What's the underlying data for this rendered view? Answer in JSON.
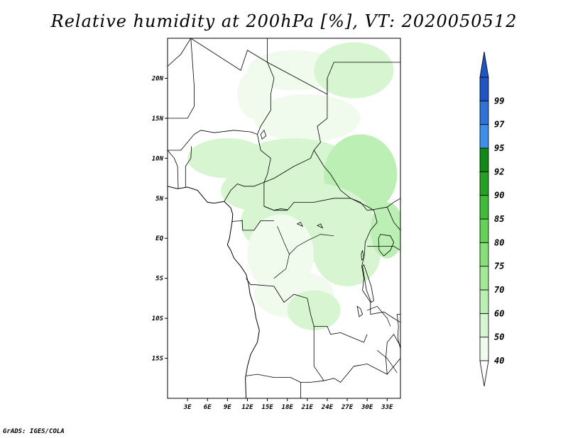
{
  "map": {
    "title": "Relative humidity at 200hPa [%], VT: 2020050512",
    "credit": "GrADS: IGES/COLA",
    "lon_range": [
      0,
      35
    ],
    "lat_range": [
      -20,
      25
    ],
    "lat_ticks": [
      {
        "value": 20,
        "label": "20N"
      },
      {
        "value": 15,
        "label": "15N"
      },
      {
        "value": 10,
        "label": "10N"
      },
      {
        "value": 5,
        "label": "5N"
      },
      {
        "value": 0,
        "label": "EQ"
      },
      {
        "value": -5,
        "label": "5S"
      },
      {
        "value": -10,
        "label": "10S"
      },
      {
        "value": -15,
        "label": "15S"
      }
    ],
    "lon_ticks": [
      {
        "value": 3,
        "label": "3E"
      },
      {
        "value": 6,
        "label": "6E"
      },
      {
        "value": 9,
        "label": "9E"
      },
      {
        "value": 12,
        "label": "12E"
      },
      {
        "value": 15,
        "label": "15E"
      },
      {
        "value": 18,
        "label": "18E"
      },
      {
        "value": 21,
        "label": "21E"
      },
      {
        "value": 24,
        "label": "24E"
      },
      {
        "value": 27,
        "label": "27E"
      },
      {
        "value": 30,
        "label": "30E"
      },
      {
        "value": 33,
        "label": "33E"
      }
    ],
    "colorbar": {
      "bins": [
        {
          "lo": 40,
          "hi": 50,
          "color": "#f0fbee"
        },
        {
          "lo": 50,
          "hi": 60,
          "color": "#d6f5d0"
        },
        {
          "lo": 60,
          "hi": 70,
          "color": "#bcefb3"
        },
        {
          "lo": 70,
          "hi": 75,
          "color": "#a2e996"
        },
        {
          "lo": 75,
          "hi": 80,
          "color": "#86e078"
        },
        {
          "lo": 80,
          "hi": 85,
          "color": "#62d356"
        },
        {
          "lo": 85,
          "hi": 90,
          "color": "#3fbd38"
        },
        {
          "lo": 90,
          "hi": 92,
          "color": "#25a226"
        },
        {
          "lo": 92,
          "hi": 95,
          "color": "#118a15"
        },
        {
          "lo": 95,
          "hi": 97,
          "color": "#3d8fe8"
        },
        {
          "lo": 97,
          "hi": 99,
          "color": "#2f71d6"
        },
        {
          "lo": 99,
          "hi": 100,
          "color": "#1f56c4"
        }
      ],
      "labels": [
        "40",
        "50",
        "60",
        "70",
        "75",
        "80",
        "85",
        "90",
        "92",
        "95",
        "97",
        "99"
      ],
      "lower_extension_color": "#ffffff",
      "upper_extension_color": "#1f56c4"
    },
    "humidity_fields": [
      {
        "lon": 13,
        "lat": 18,
        "rx": 2.5,
        "ry": 3,
        "level": "40-50"
      },
      {
        "lon": 19,
        "lat": 21,
        "rx": 7,
        "ry": 2.5,
        "level": "40-50"
      },
      {
        "lon": 28,
        "lat": 21,
        "rx": 6,
        "ry": 3.5,
        "level": "50-60"
      },
      {
        "lon": 21,
        "lat": 15,
        "rx": 8,
        "ry": 3,
        "level": "40-50"
      },
      {
        "lon": 9,
        "lat": 10,
        "rx": 6,
        "ry": 2.5,
        "level": "50-60"
      },
      {
        "lon": 19,
        "lat": 9,
        "rx": 9,
        "ry": 3.5,
        "level": "50-60"
      },
      {
        "lon": 29,
        "lat": 8,
        "rx": 5.5,
        "ry": 5,
        "level": "60-70"
      },
      {
        "lon": 13,
        "lat": 6,
        "rx": 5,
        "ry": 2.5,
        "level": "50-60"
      },
      {
        "lon": 21,
        "lat": 2,
        "rx": 10,
        "ry": 5,
        "level": "50-60"
      },
      {
        "lon": 17,
        "lat": -2,
        "rx": 5,
        "ry": 5,
        "level": "40-50"
      },
      {
        "lon": 27,
        "lat": -2,
        "rx": 5,
        "ry": 4,
        "level": "50-60"
      },
      {
        "lon": 33,
        "lat": 1,
        "rx": 2.5,
        "ry": 3.5,
        "level": "60-70"
      },
      {
        "lon": 19,
        "lat": -7,
        "rx": 6,
        "ry": 3,
        "level": "40-50"
      },
      {
        "lon": 22,
        "lat": -9,
        "rx": 4,
        "ry": 2.5,
        "level": "50-60"
      }
    ],
    "coastline": [
      [
        0,
        6.5
      ],
      [
        1.5,
        6.2
      ],
      [
        3,
        6.4
      ],
      [
        4.5,
        6
      ],
      [
        6,
        4.5
      ],
      [
        7,
        4.4
      ],
      [
        8.5,
        4.6
      ],
      [
        9.5,
        3.8
      ],
      [
        9.8,
        3
      ],
      [
        9.7,
        2
      ],
      [
        9.5,
        1
      ],
      [
        9.3,
        0
      ],
      [
        9,
        -0.8
      ],
      [
        9.5,
        -1.5
      ],
      [
        10,
        -2.5
      ],
      [
        11,
        -3.5
      ],
      [
        11.8,
        -4.5
      ],
      [
        12.2,
        -5.8
      ],
      [
        12.4,
        -7
      ],
      [
        13,
        -8.5
      ],
      [
        13.3,
        -10
      ],
      [
        13.8,
        -11.5
      ],
      [
        13.5,
        -13
      ],
      [
        12.5,
        -14.5
      ],
      [
        12,
        -16
      ],
      [
        11.7,
        -17.5
      ],
      [
        11.8,
        -20
      ]
    ],
    "borders": [
      [
        [
          3.5,
          25
        ],
        [
          11,
          21
        ],
        [
          12,
          23.5
        ],
        [
          15,
          22
        ],
        [
          15,
          25
        ]
      ],
      [
        [
          15,
          22
        ],
        [
          16,
          20
        ],
        [
          15.5,
          18
        ],
        [
          15.5,
          16
        ],
        [
          14,
          14
        ],
        [
          13.5,
          13
        ]
      ],
      [
        [
          15,
          22
        ],
        [
          24,
          18
        ],
        [
          24,
          20
        ],
        [
          25,
          22
        ],
        [
          35,
          22
        ]
      ],
      [
        [
          24,
          20
        ],
        [
          24,
          15
        ],
        [
          22.5,
          14
        ],
        [
          23,
          12
        ],
        [
          22,
          11
        ],
        [
          21.5,
          10
        ],
        [
          19,
          9
        ],
        [
          16,
          7.5
        ],
        [
          14.5,
          7
        ],
        [
          14.5,
          4
        ],
        [
          16,
          3.5
        ],
        [
          18,
          3.5
        ],
        [
          19,
          4.5
        ],
        [
          22,
          4.5
        ],
        [
          25,
          5
        ],
        [
          27.5,
          5
        ]
      ],
      [
        [
          13.5,
          13
        ],
        [
          14,
          11
        ],
        [
          15.5,
          10
        ],
        [
          15,
          8
        ],
        [
          14.5,
          7
        ],
        [
          13,
          6.5
        ],
        [
          11.5,
          6.5
        ],
        [
          10.5,
          6.8
        ],
        [
          9.5,
          6
        ],
        [
          8.5,
          4.6
        ]
      ],
      [
        [
          0,
          11
        ],
        [
          2,
          11
        ],
        [
          4,
          13
        ],
        [
          5,
          13.5
        ],
        [
          7,
          13.2
        ],
        [
          10,
          13.5
        ],
        [
          12.5,
          13.3
        ],
        [
          13.5,
          13
        ]
      ],
      [
        [
          3.5,
          25
        ],
        [
          2,
          23
        ],
        [
          0,
          21.5
        ]
      ],
      [
        [
          0,
          15
        ],
        [
          3,
          15
        ],
        [
          4,
          16.5
        ],
        [
          4,
          19
        ],
        [
          3.5,
          25
        ]
      ],
      [
        [
          0,
          11
        ],
        [
          1,
          10
        ],
        [
          1.5,
          9
        ],
        [
          1.6,
          6.2
        ]
      ],
      [
        [
          2.7,
          6.4
        ],
        [
          2.7,
          9
        ],
        [
          3.5,
          10
        ],
        [
          3.6,
          11.5
        ]
      ],
      [
        [
          22,
          11
        ],
        [
          23.5,
          9
        ],
        [
          24.5,
          8
        ],
        [
          26,
          6
        ],
        [
          27.5,
          5
        ],
        [
          30,
          4
        ],
        [
          31,
          3.5
        ],
        [
          31.5,
          2
        ]
      ],
      [
        [
          27.5,
          5
        ],
        [
          29,
          4.5
        ],
        [
          30,
          3.5
        ],
        [
          31,
          3.6
        ],
        [
          33,
          3.9
        ],
        [
          34,
          4.5
        ],
        [
          35,
          5
        ]
      ],
      [
        [
          31.5,
          2
        ],
        [
          30.5,
          1
        ],
        [
          29.7,
          -0.5
        ],
        [
          29.6,
          -2
        ],
        [
          29.2,
          -3.5
        ],
        [
          29.5,
          -5
        ],
        [
          29.3,
          -6.5
        ],
        [
          30.5,
          -8
        ],
        [
          30.5,
          -9.5
        ]
      ],
      [
        [
          11.2,
          2.3
        ],
        [
          11.3,
          1
        ],
        [
          13,
          1
        ],
        [
          14,
          2.2
        ],
        [
          16,
          2.2
        ]
      ],
      [
        [
          9.6,
          2.1
        ],
        [
          11.3,
          2.2
        ]
      ],
      [
        [
          14.5,
          4
        ],
        [
          16,
          3.5
        ],
        [
          17,
          3.7
        ],
        [
          18,
          3.6
        ]
      ],
      [
        [
          11.8,
          -5
        ],
        [
          12.5,
          -5.8
        ],
        [
          13.2,
          -5.8
        ],
        [
          16,
          -6
        ],
        [
          17.5,
          -8
        ],
        [
          19,
          -7
        ],
        [
          21,
          -7.5
        ],
        [
          21.5,
          -9.5
        ],
        [
          22,
          -11
        ],
        [
          24,
          -11
        ],
        [
          24.5,
          -12
        ],
        [
          26,
          -11.8
        ],
        [
          28,
          -12.5
        ],
        [
          29.5,
          -13
        ],
        [
          30,
          -12
        ]
      ],
      [
        [
          22,
          -11
        ],
        [
          22,
          -13
        ],
        [
          22,
          -16
        ],
        [
          23.5,
          -17.8
        ],
        [
          25,
          -17.5
        ],
        [
          26,
          -18
        ],
        [
          28,
          -16
        ],
        [
          30,
          -15.7
        ],
        [
          33,
          -17
        ],
        [
          35,
          -15
        ]
      ],
      [
        [
          20,
          -18
        ],
        [
          21.5,
          -18
        ],
        [
          23.5,
          -17.8
        ]
      ],
      [
        [
          11.8,
          -17.2
        ],
        [
          13.5,
          -17
        ],
        [
          16,
          -17.4
        ],
        [
          18.5,
          -17.4
        ],
        [
          20,
          -18
        ],
        [
          20,
          -20
        ]
      ],
      [
        [
          33,
          -17
        ],
        [
          32.8,
          -15
        ],
        [
          33,
          -13
        ],
        [
          34,
          -12
        ],
        [
          35,
          -13.5
        ]
      ],
      [
        [
          30.5,
          -9.5
        ],
        [
          32.5,
          -9.2
        ],
        [
          34,
          -10
        ],
        [
          35,
          -10.5
        ]
      ],
      [
        [
          30,
          -1
        ],
        [
          31,
          -1
        ],
        [
          32.5,
          -1
        ],
        [
          34,
          -1
        ],
        [
          35,
          -1.5
        ]
      ],
      [
        [
          33,
          3.9
        ],
        [
          34,
          2
        ],
        [
          35,
          1
        ]
      ]
    ],
    "lakes": [
      [
        [
          32,
          0.5
        ],
        [
          33.5,
          0.3
        ],
        [
          34,
          -0.5
        ],
        [
          33.5,
          -1.5
        ],
        [
          32.5,
          -2.2
        ],
        [
          31.8,
          -1.5
        ],
        [
          31.7,
          0
        ]
      ],
      [
        [
          29.3,
          -3.5
        ],
        [
          29.6,
          -5
        ],
        [
          29.9,
          -6.5
        ],
        [
          30.6,
          -8
        ],
        [
          31,
          -7.8
        ],
        [
          30.6,
          -6
        ],
        [
          30,
          -4.5
        ],
        [
          29.5,
          -3.3
        ]
      ],
      [
        [
          34.5,
          -9.5
        ],
        [
          34.7,
          -11
        ],
        [
          34.6,
          -12.5
        ],
        [
          35,
          -13.8
        ],
        [
          35,
          -9.5
        ]
      ],
      [
        [
          28.5,
          -8.5
        ],
        [
          29,
          -8.8
        ],
        [
          29.3,
          -9.5
        ],
        [
          28.8,
          -9.8
        ]
      ],
      [
        [
          29.1,
          -2
        ],
        [
          29.3,
          -1.5
        ],
        [
          29.5,
          -2.5
        ],
        [
          29.2,
          -2.7
        ]
      ],
      [
        [
          14,
          13
        ],
        [
          14.5,
          13.5
        ],
        [
          14.8,
          12.8
        ],
        [
          14.2,
          12.4
        ]
      ],
      [
        [
          19.5,
          1.8
        ],
        [
          20,
          2
        ],
        [
          20.3,
          1.5
        ]
      ],
      [
        [
          22.5,
          1.6
        ],
        [
          23,
          1.8
        ],
        [
          23.3,
          1.3
        ]
      ]
    ],
    "rivers": [
      [
        [
          16.5,
          1.5
        ],
        [
          17.5,
          -0.5
        ],
        [
          18.3,
          -2
        ],
        [
          17.8,
          -3.8
        ],
        [
          16,
          -5
        ]
      ],
      [
        [
          18.3,
          -2
        ],
        [
          19.5,
          -1
        ],
        [
          21,
          -0.3
        ],
        [
          23,
          0.5
        ],
        [
          25,
          0.3
        ]
      ],
      [
        [
          30,
          -9
        ],
        [
          31.5,
          -8.5
        ],
        [
          33,
          -10
        ],
        [
          33.5,
          -11
        ]
      ],
      [
        [
          31.5,
          -14
        ],
        [
          33,
          -15
        ],
        [
          34.5,
          -16.8
        ]
      ]
    ]
  }
}
